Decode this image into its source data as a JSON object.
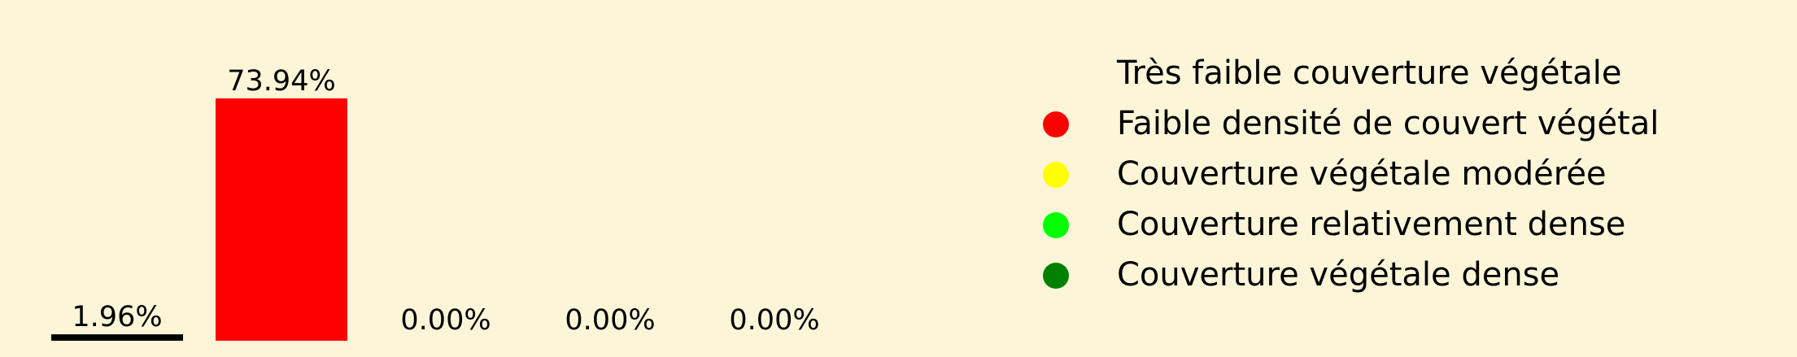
{
  "chart_data": {
    "type": "bar",
    "categories": [
      "Très faible couverture végétale",
      "Faible densité de couvert végétal",
      "Couverture végétale modérée",
      "Couverture relativement dense",
      "Couverture végétale dense"
    ],
    "values": [
      1.96,
      73.94,
      0.0,
      0.0,
      0.0
    ],
    "value_labels": [
      "1.96%",
      "73.94%",
      "0.00%",
      "0.00%",
      "0.00%"
    ],
    "colors": [
      "#000000",
      "#ff0000",
      "#ffff00",
      "#00ff00",
      "#008000"
    ],
    "title": "",
    "xlabel": "",
    "ylabel": "",
    "ylim": [
      0,
      80
    ],
    "grid": false,
    "legend": {
      "placement": "right",
      "entries": [
        {
          "label": "Très faible couverture végétale",
          "color": "#000000",
          "marker": "none"
        },
        {
          "label": "Faible densité de couvert végétal",
          "color": "#ff0000",
          "marker": "circle"
        },
        {
          "label": "Couverture végétale modérée",
          "color": "#ffff00",
          "marker": "circle"
        },
        {
          "label": "Couverture relativement dense",
          "color": "#00ff00",
          "marker": "circle"
        },
        {
          "label": "Couverture végétale dense",
          "color": "#008000",
          "marker": "circle"
        }
      ]
    }
  },
  "background_color": "#fdf5d8"
}
